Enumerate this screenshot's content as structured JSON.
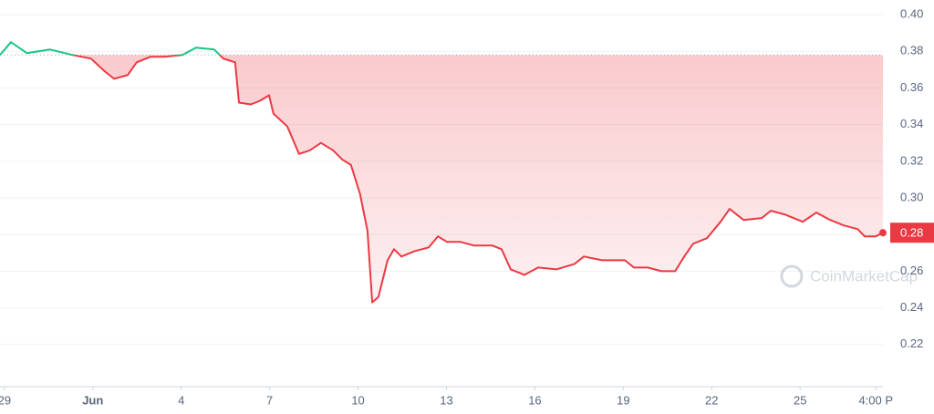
{
  "chart_data": {
    "type": "line",
    "x": [
      -0.15,
      0.22,
      0.77,
      1.55,
      2.32,
      2.94,
      3.41,
      3.72,
      4.18,
      4.49,
      4.95,
      5.42,
      6.04,
      6.5,
      7.12,
      7.43,
      7.83,
      7.96,
      8.36,
      8.67,
      8.98,
      9.13,
      9.6,
      10.0,
      10.37,
      10.74,
      11.15,
      11.46,
      11.76,
      12.07,
      12.32,
      12.48,
      12.69,
      13.0,
      13.22,
      13.47,
      13.93,
      14.4,
      14.71,
      15.02,
      15.48,
      15.94,
      16.56,
      16.87,
      17.18,
      17.65,
      18.11,
      18.73,
      19.35,
      19.66,
      20.28,
      21.05,
      21.36,
      21.83,
      22.29,
      22.76,
      23.07,
      23.37,
      23.84,
      24.3,
      24.61,
      25.08,
      25.7,
      26.01,
      26.47,
      27.09,
      27.55,
      28.02,
      28.48,
      28.95,
      29.19,
      29.57,
      29.81
    ],
    "values": [
      0.378,
      0.385,
      0.379,
      0.381,
      0.378,
      0.376,
      0.369,
      0.365,
      0.367,
      0.374,
      0.377,
      0.377,
      0.378,
      0.382,
      0.381,
      0.376,
      0.374,
      0.352,
      0.351,
      0.353,
      0.356,
      0.346,
      0.339,
      0.324,
      0.326,
      0.33,
      0.326,
      0.321,
      0.318,
      0.302,
      0.282,
      0.243,
      0.246,
      0.266,
      0.272,
      0.268,
      0.271,
      0.273,
      0.279,
      0.276,
      0.276,
      0.274,
      0.274,
      0.272,
      0.261,
      0.258,
      0.262,
      0.261,
      0.264,
      0.268,
      0.266,
      0.266,
      0.262,
      0.262,
      0.26,
      0.26,
      0.268,
      0.275,
      0.278,
      0.287,
      0.294,
      0.288,
      0.289,
      0.293,
      0.291,
      0.287,
      0.292,
      0.288,
      0.285,
      0.283,
      0.279,
      0.279,
      0.281
    ],
    "baseline": 0.378,
    "color_up": "#16c784",
    "color_down": "#ea3943",
    "last_price": {
      "value": 0.281,
      "label": "0.28"
    },
    "xlim": [
      -0.15,
      29.81
    ],
    "xticks": [
      {
        "value": 0,
        "label": "29"
      },
      {
        "value": 3,
        "label": "Jun"
      },
      {
        "value": 6,
        "label": "4"
      },
      {
        "value": 9,
        "label": "7"
      },
      {
        "value": 12,
        "label": "10"
      },
      {
        "value": 15,
        "label": "13"
      },
      {
        "value": 18,
        "label": "16"
      },
      {
        "value": 21,
        "label": "19"
      },
      {
        "value": 24,
        "label": "22"
      },
      {
        "value": 27,
        "label": "25"
      },
      {
        "value": 29.57,
        "label": "4:00 P"
      }
    ],
    "ylim": [
      0.2,
      0.408
    ],
    "yticks": [
      {
        "value": 0.22,
        "label": "0.22"
      },
      {
        "value": 0.24,
        "label": "0.24"
      },
      {
        "value": 0.26,
        "label": "0.26"
      },
      {
        "value": 0.28,
        "label": "0.28"
      },
      {
        "value": 0.3,
        "label": "0.30"
      },
      {
        "value": 0.32,
        "label": "0.32"
      },
      {
        "value": 0.34,
        "label": "0.34"
      },
      {
        "value": 0.36,
        "label": "0.36"
      },
      {
        "value": 0.38,
        "label": "0.38"
      },
      {
        "value": 0.4,
        "label": "0.40"
      }
    ],
    "grid": true,
    "watermark": "CoinMarketCap"
  }
}
